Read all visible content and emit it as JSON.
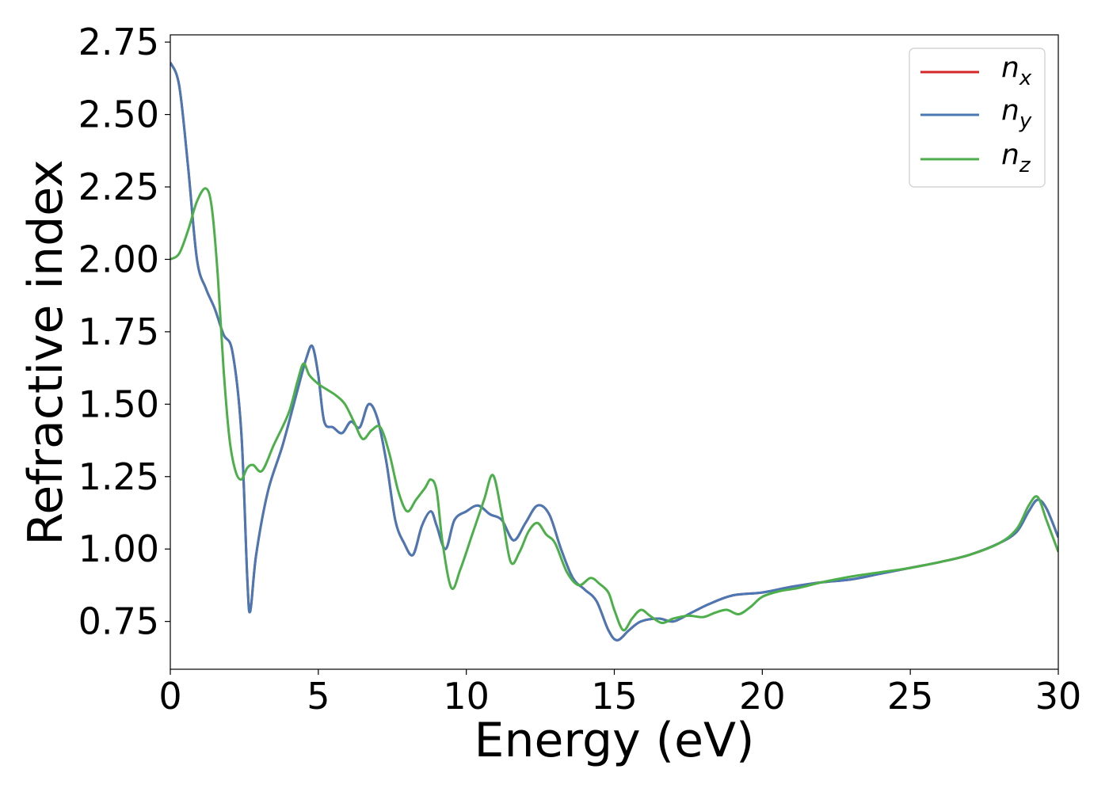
{
  "chart_data": {
    "type": "line",
    "xlabel": "Energy (eV)",
    "ylabel": "Refractive index",
    "xlim": [
      0,
      30
    ],
    "ylim": [
      0.585,
      2.775
    ],
    "x_ticks": [
      "0",
      "5",
      "10",
      "15",
      "20",
      "25",
      "30"
    ],
    "x_tick_values": [
      0,
      5,
      10,
      15,
      20,
      25,
      30
    ],
    "y_ticks": [
      "0.75",
      "1.00",
      "1.25",
      "1.50",
      "1.75",
      "2.00",
      "2.25",
      "2.50",
      "2.75"
    ],
    "y_tick_values": [
      0.75,
      1.0,
      1.25,
      1.5,
      1.75,
      2.0,
      2.25,
      2.5,
      2.75
    ],
    "grid": false,
    "legend_position": "top-right",
    "series": [
      {
        "name": "n_x",
        "label_base": "n",
        "label_sub": "x",
        "color": "#d62728",
        "x": [
          0,
          0.3,
          0.6,
          0.9,
          1.2,
          1.5,
          1.8,
          2.1,
          2.4,
          2.6,
          2.7,
          2.9,
          3.3,
          3.8,
          4.3,
          4.6,
          4.8,
          5.0,
          5.2,
          5.5,
          5.8,
          6.1,
          6.4,
          6.7,
          7.0,
          7.3,
          7.6,
          7.9,
          8.2,
          8.5,
          8.8,
          9.0,
          9.3,
          9.6,
          10.0,
          10.4,
          10.8,
          11.2,
          11.6,
          12.0,
          12.4,
          12.8,
          13.2,
          13.6,
          14.0,
          14.4,
          14.8,
          15.1,
          15.5,
          15.9,
          16.5,
          17.0,
          17.6,
          18.2,
          19.0,
          20.0,
          21.0,
          22.0,
          23.0,
          24.0,
          25.0,
          26.0,
          27.0,
          28.0,
          28.6,
          29.0,
          29.3,
          29.6,
          30.0
        ],
        "values": [
          2.68,
          2.6,
          2.32,
          2.0,
          1.9,
          1.83,
          1.74,
          1.68,
          1.4,
          0.9,
          0.785,
          0.98,
          1.2,
          1.36,
          1.55,
          1.66,
          1.7,
          1.6,
          1.44,
          1.42,
          1.4,
          1.44,
          1.42,
          1.5,
          1.45,
          1.3,
          1.1,
          1.02,
          0.98,
          1.08,
          1.13,
          1.08,
          1.0,
          1.1,
          1.13,
          1.15,
          1.12,
          1.1,
          1.03,
          1.09,
          1.15,
          1.12,
          1.0,
          0.9,
          0.86,
          0.82,
          0.72,
          0.685,
          0.72,
          0.75,
          0.76,
          0.75,
          0.78,
          0.81,
          0.84,
          0.85,
          0.87,
          0.885,
          0.895,
          0.915,
          0.935,
          0.955,
          0.98,
          1.02,
          1.06,
          1.13,
          1.17,
          1.14,
          1.04
        ]
      },
      {
        "name": "n_y",
        "label_base": "n",
        "label_sub": "y",
        "color": "#4a78b5",
        "x": [
          0,
          0.3,
          0.6,
          0.9,
          1.2,
          1.5,
          1.8,
          2.1,
          2.4,
          2.6,
          2.7,
          2.9,
          3.3,
          3.8,
          4.3,
          4.6,
          4.8,
          5.0,
          5.2,
          5.5,
          5.8,
          6.1,
          6.4,
          6.7,
          7.0,
          7.3,
          7.6,
          7.9,
          8.2,
          8.5,
          8.8,
          9.0,
          9.3,
          9.6,
          10.0,
          10.4,
          10.8,
          11.2,
          11.6,
          12.0,
          12.4,
          12.8,
          13.2,
          13.6,
          14.0,
          14.4,
          14.8,
          15.1,
          15.5,
          15.9,
          16.5,
          17.0,
          17.6,
          18.2,
          19.0,
          20.0,
          21.0,
          22.0,
          23.0,
          24.0,
          25.0,
          26.0,
          27.0,
          28.0,
          28.6,
          29.0,
          29.3,
          29.6,
          30.0
        ],
        "values": [
          2.68,
          2.6,
          2.32,
          2.0,
          1.9,
          1.83,
          1.74,
          1.68,
          1.4,
          0.9,
          0.785,
          0.98,
          1.2,
          1.36,
          1.55,
          1.66,
          1.7,
          1.6,
          1.44,
          1.42,
          1.4,
          1.44,
          1.42,
          1.5,
          1.45,
          1.3,
          1.1,
          1.02,
          0.98,
          1.08,
          1.13,
          1.08,
          1.0,
          1.1,
          1.13,
          1.15,
          1.12,
          1.1,
          1.03,
          1.09,
          1.15,
          1.12,
          1.0,
          0.9,
          0.86,
          0.82,
          0.72,
          0.685,
          0.72,
          0.75,
          0.76,
          0.75,
          0.78,
          0.81,
          0.84,
          0.85,
          0.87,
          0.885,
          0.895,
          0.915,
          0.935,
          0.955,
          0.98,
          1.02,
          1.06,
          1.13,
          1.17,
          1.14,
          1.04
        ]
      },
      {
        "name": "n_z",
        "label_base": "n",
        "label_sub": "z",
        "color": "#4daf4a",
        "x": [
          0,
          0.3,
          0.6,
          0.9,
          1.2,
          1.4,
          1.6,
          1.8,
          2.0,
          2.2,
          2.4,
          2.6,
          2.8,
          3.1,
          3.5,
          4.0,
          4.3,
          4.5,
          4.7,
          5.0,
          5.3,
          5.6,
          5.9,
          6.2,
          6.5,
          6.8,
          7.1,
          7.4,
          7.7,
          8.0,
          8.3,
          8.6,
          8.8,
          9.0,
          9.2,
          9.5,
          9.8,
          10.2,
          10.6,
          10.9,
          11.2,
          11.5,
          11.8,
          12.1,
          12.4,
          12.7,
          13.0,
          13.4,
          13.8,
          14.2,
          14.5,
          14.8,
          15.0,
          15.3,
          15.6,
          15.9,
          16.2,
          16.6,
          17.0,
          17.5,
          18.0,
          18.4,
          18.8,
          19.2,
          19.6,
          20.0,
          20.6,
          21.2,
          22.0,
          23.0,
          24.0,
          25.0,
          26.0,
          27.0,
          28.0,
          28.6,
          29.0,
          29.3,
          29.6,
          30.0
        ],
        "values": [
          2.0,
          2.02,
          2.1,
          2.2,
          2.245,
          2.18,
          1.95,
          1.62,
          1.38,
          1.27,
          1.24,
          1.28,
          1.29,
          1.27,
          1.36,
          1.47,
          1.58,
          1.64,
          1.6,
          1.57,
          1.55,
          1.53,
          1.5,
          1.44,
          1.38,
          1.41,
          1.42,
          1.33,
          1.2,
          1.13,
          1.17,
          1.21,
          1.24,
          1.2,
          1.02,
          0.865,
          0.93,
          1.05,
          1.17,
          1.255,
          1.12,
          0.955,
          0.99,
          1.06,
          1.09,
          1.05,
          1.02,
          0.92,
          0.875,
          0.9,
          0.88,
          0.85,
          0.79,
          0.72,
          0.76,
          0.79,
          0.77,
          0.745,
          0.76,
          0.77,
          0.765,
          0.78,
          0.79,
          0.775,
          0.8,
          0.835,
          0.855,
          0.865,
          0.885,
          0.905,
          0.92,
          0.935,
          0.955,
          0.98,
          1.02,
          1.07,
          1.15,
          1.18,
          1.1,
          0.99
        ]
      }
    ]
  }
}
